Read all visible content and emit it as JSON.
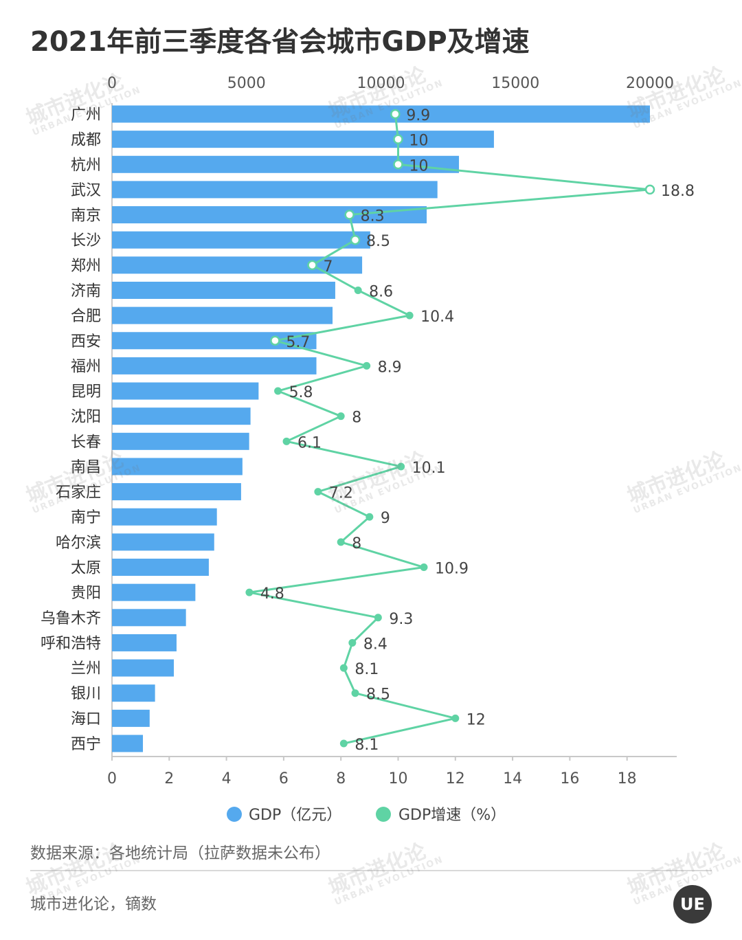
{
  "title": "2021年前三季度各省会城市GDP及增速",
  "source": "数据来源：各地统计局（拉萨数据未公布）",
  "credit": "城市进化论，镝数",
  "logo_text": "UE",
  "watermark": {
    "cn": "城市进化论",
    "en": "URBAN EVOLUTION"
  },
  "colors": {
    "gdp": "#55a9ee",
    "growth": "#5fd3a4",
    "axis": "#c8c8c8",
    "text": "#333333"
  },
  "chart_data": {
    "type": "bar",
    "orientation": "horizontal",
    "categories": [
      "广州",
      "成都",
      "杭州",
      "武汉",
      "南京",
      "长沙",
      "郑州",
      "济南",
      "合肥",
      "西安",
      "福州",
      "昆明",
      "沈阳",
      "长春",
      "南昌",
      "石家庄",
      "南宁",
      "哈尔滨",
      "太原",
      "贵阳",
      "乌鲁木齐",
      "呼和浩特",
      "兰州",
      "银川",
      "海口",
      "西宁"
    ],
    "series": [
      {
        "name": "GDP（亿元）",
        "type": "bar",
        "axis": "top",
        "values": [
          20000,
          14200,
          12900,
          12100,
          11700,
          9600,
          9300,
          8300,
          8200,
          7600,
          7600,
          5450,
          5150,
          5100,
          4850,
          4800,
          3900,
          3800,
          3600,
          3100,
          2750,
          2400,
          2300,
          1600,
          1400,
          1150
        ]
      },
      {
        "name": "GDP增速（%）",
        "type": "line",
        "axis": "bottom",
        "values": [
          9.9,
          10,
          10,
          18.8,
          8.3,
          8.5,
          7,
          8.6,
          10.4,
          5.7,
          8.9,
          5.8,
          8,
          6.1,
          10.1,
          7.2,
          9,
          8,
          10.9,
          4.8,
          9.3,
          8.4,
          8.1,
          8.5,
          12,
          8.1
        ],
        "labels": [
          "9.9",
          "10",
          "10",
          "18.8",
          "8.3",
          "8.5",
          "7",
          "8.6",
          "10.4",
          "5.7",
          "8.9",
          "5.8",
          "8",
          "6.1",
          "10.1",
          "7.2",
          "9",
          "8",
          "10.9",
          "4.8",
          "9.3",
          "8.4",
          "8.1",
          "8.5",
          "12",
          "8.1"
        ]
      }
    ],
    "top_axis": {
      "ticks": [
        0,
        5000,
        10000,
        15000,
        20000
      ],
      "range": [
        0,
        20000
      ]
    },
    "bottom_axis": {
      "ticks": [
        0,
        2,
        4,
        6,
        8,
        10,
        12,
        14,
        16,
        18
      ],
      "range": [
        0,
        18.8
      ]
    },
    "legend": {
      "position": "bottom-center",
      "items": [
        "GDP（亿元）",
        "GDP增速（%）"
      ]
    },
    "grid": false
  }
}
